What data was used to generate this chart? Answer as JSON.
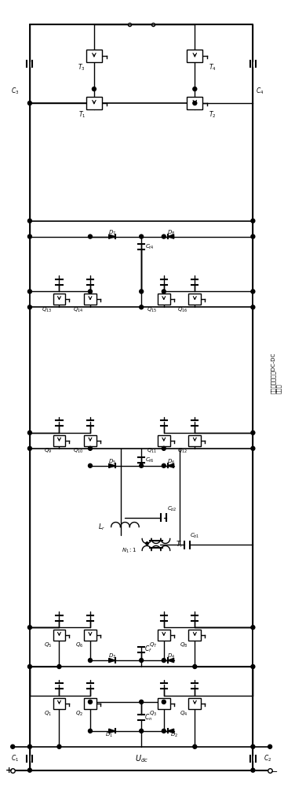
{
  "title": "",
  "bg_color": "#ffffff",
  "line_color": "#000000",
  "fig_width": 3.62,
  "fig_height": 10.0,
  "dpi": 100,
  "label_dc": "DC-DC",
  "label_converter": "三电平双有源桥DC-DC\n变换器",
  "label_udc": "U_{dc}",
  "label_plus": "+",
  "label_minus": "-"
}
